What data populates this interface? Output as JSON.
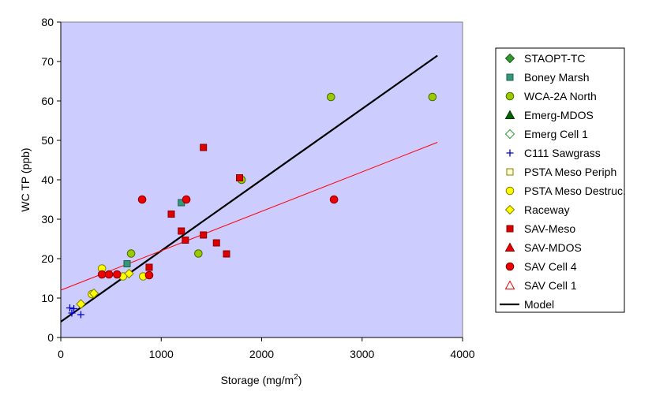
{
  "chart_data": {
    "type": "scatter",
    "xlabel": "Storage (mg/m",
    "xlabel_sup": "2",
    "xlabel_tail": ")",
    "ylabel": "WC TP (ppb)",
    "xlim": [
      0,
      4000
    ],
    "ylim": [
      0,
      80
    ],
    "x_ticks": [
      0,
      1000,
      2000,
      3000,
      4000
    ],
    "y_ticks": [
      0,
      10,
      20,
      30,
      40,
      50,
      60,
      70,
      80
    ],
    "plot_background": "#ccccff",
    "grid": false,
    "legend_position": "right",
    "series": [
      {
        "name": "STAOPT-TC",
        "marker": "diamond",
        "fill": "#339933",
        "stroke": "#1a5c1a",
        "points": []
      },
      {
        "name": "Boney Marsh",
        "marker": "square",
        "fill": "#33997a",
        "stroke": "#1f5c49",
        "points": [
          [
            660,
            18.7
          ],
          [
            1200,
            34.2
          ]
        ]
      },
      {
        "name": "WCA-2A North",
        "marker": "circle",
        "fill": "#99cc00",
        "stroke": "#4d6600",
        "points": [
          [
            700,
            21.3
          ],
          [
            1370,
            21.3
          ],
          [
            1800,
            40
          ],
          [
            2690,
            61
          ],
          [
            3700,
            61
          ]
        ]
      },
      {
        "name": "Emerg-MDOS",
        "marker": "triangle",
        "fill": "#006600",
        "stroke": "#003300",
        "points": []
      },
      {
        "name": "Emerg Cell 1",
        "marker": "diamond-open",
        "fill": "#ffffff",
        "stroke": "#339933",
        "points": []
      },
      {
        "name": "C111 Sawgrass",
        "marker": "plus",
        "fill": "none",
        "stroke": "#0000cc",
        "points": [
          [
            90,
            7.5
          ],
          [
            130,
            7.3
          ],
          [
            110,
            6.2
          ],
          [
            200,
            5.8
          ]
        ]
      },
      {
        "name": "PSTA Meso Periph",
        "marker": "square-open",
        "fill": "#ffffcc",
        "stroke": "#808000",
        "points": []
      },
      {
        "name": "PSTA Meso Destruc.",
        "marker": "circle",
        "fill": "#ffff00",
        "stroke": "#808000",
        "points": [
          [
            310,
            11
          ],
          [
            410,
            17.5
          ],
          [
            620,
            15.5
          ],
          [
            820,
            15.5
          ]
        ]
      },
      {
        "name": "Raceway",
        "marker": "diamond",
        "fill": "#ffff00",
        "stroke": "#808000",
        "points": [
          [
            200,
            8.5
          ],
          [
            330,
            11.2
          ],
          [
            680,
            16.2
          ]
        ]
      },
      {
        "name": "SAV-Meso",
        "marker": "square",
        "fill": "#dd0000",
        "stroke": "#880000",
        "points": [
          [
            1100,
            31.3
          ],
          [
            1200,
            27
          ],
          [
            1240,
            24.7
          ],
          [
            1420,
            48.2
          ],
          [
            1420,
            26
          ],
          [
            1550,
            24
          ],
          [
            1650,
            21.2
          ],
          [
            1780,
            40.5
          ],
          [
            880,
            17.8
          ]
        ]
      },
      {
        "name": "SAV-MDOS",
        "marker": "triangle",
        "fill": "#ee0000",
        "stroke": "#880000",
        "points": []
      },
      {
        "name": "SAV Cell 4",
        "marker": "circle",
        "fill": "#ee0000",
        "stroke": "#880000",
        "points": [
          [
            410,
            16
          ],
          [
            480,
            16
          ],
          [
            560,
            16
          ],
          [
            810,
            35
          ],
          [
            880,
            15.8
          ],
          [
            1250,
            35
          ],
          [
            2720,
            35
          ]
        ]
      },
      {
        "name": "SAV Cell 1",
        "marker": "triangle-open",
        "fill": "#ffffff",
        "stroke": "#ee0000",
        "points": []
      }
    ],
    "lines": [
      {
        "name": "Model",
        "color": "#000000",
        "width": 2.2,
        "x": [
          0,
          3750
        ],
        "y": [
          4,
          71.5
        ],
        "in_legend": true
      },
      {
        "name": "",
        "color": "#ff0000",
        "width": 1,
        "x": [
          0,
          3750
        ],
        "y": [
          12,
          49.5
        ],
        "in_legend": false
      }
    ]
  }
}
